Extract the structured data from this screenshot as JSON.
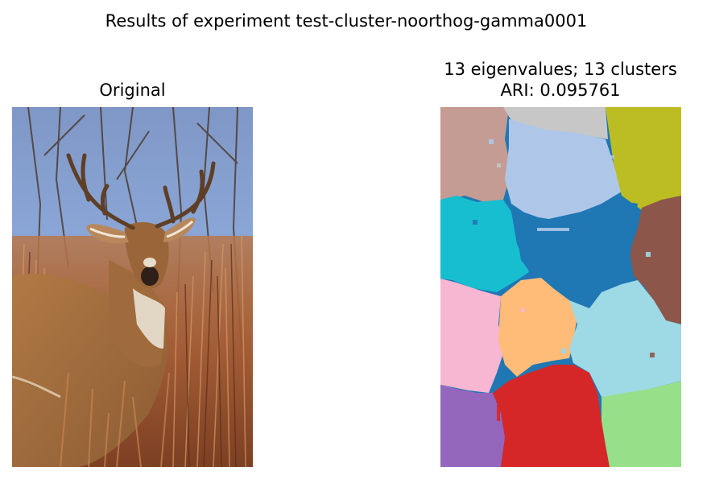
{
  "figure": {
    "title": "Results of experiment test-cluster-noorthog-gamma0001"
  },
  "panels": {
    "original": {
      "title": "Original",
      "content": "photo of a white-tailed deer buck among tall dry grass and bare branches"
    },
    "segmentation": {
      "title_line1": "13 eigenvalues; 13 clusters",
      "title_line2": "ARI: 0.095761",
      "num_clusters": 13,
      "cluster_colors": [
        "#c49c94",
        "#c7c7c7",
        "#aec7e8",
        "#bcbd22",
        "#17becf",
        "#1f77b4",
        "#8c564b",
        "#f7b6d2",
        "#ffbb78",
        "#9edae5",
        "#9467bd",
        "#d62728",
        "#98df8a"
      ]
    }
  },
  "colors": {
    "sky": "#8aa6d6",
    "grass_light": "#c9865a",
    "grass_dark": "#6b3a22",
    "deer_body": "#a8723f",
    "deer_dark": "#3a2a1e",
    "deer_white": "#e9e2d4"
  }
}
